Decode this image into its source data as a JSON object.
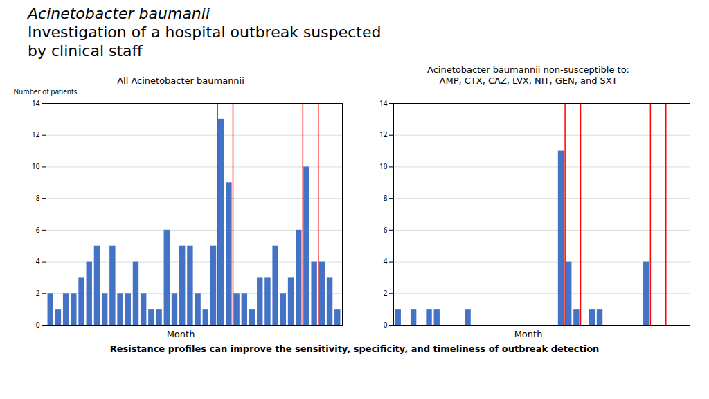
{
  "title": "Acinetobacter baumanii\nInvestigation of a hospital outbreak suspected\nby clinical staff",
  "caption": "Resistance profiles can improve the sensitivity, specificity, and timeliness of outbreak detection",
  "chart_data": [
    {
      "type": "bar",
      "title": "All Acinetobacter baumannii",
      "categories": [
        null,
        null,
        null,
        null,
        null,
        null,
        null,
        null,
        null,
        null,
        null,
        null,
        null,
        null,
        null,
        null,
        null,
        null,
        null,
        null,
        null,
        null,
        null,
        null,
        null,
        null,
        null,
        null,
        null,
        null,
        null,
        null,
        null,
        null,
        null,
        null,
        null,
        null
      ],
      "values": [
        2,
        1,
        2,
        2,
        3,
        4,
        5,
        2,
        5,
        2,
        2,
        4,
        2,
        1,
        1,
        6,
        2,
        5,
        5,
        2,
        1,
        5,
        13,
        9,
        2,
        2,
        1,
        3,
        3,
        5,
        2,
        3,
        6,
        10,
        4,
        4,
        3,
        1
      ],
      "color": "#4472C4",
      "xlabel": "Month",
      "ylabel": "Number of patients",
      "ylim": [
        0,
        14
      ],
      "yticks": [
        0,
        2,
        4,
        6,
        8,
        10,
        12,
        14
      ],
      "grid": true,
      "tick_labels": "y",
      "vlines": [
        21.5,
        23.5,
        32.5,
        34.5
      ],
      "vline_color": "#FF0000"
    },
    {
      "type": "bar",
      "title": "Acinetobacter baumannii non-susceptible to:\nAMP, CTX, CAZ, LVX, NIT, GEN, and SXT",
      "categories": [
        null,
        null,
        null,
        null,
        null,
        null,
        null,
        null,
        null,
        null,
        null,
        null,
        null,
        null,
        null,
        null,
        null,
        null,
        null,
        null,
        null,
        null,
        null,
        null,
        null,
        null,
        null,
        null,
        null,
        null,
        null,
        null,
        null,
        null,
        null,
        null,
        null,
        null
      ],
      "values": [
        1,
        0,
        1,
        0,
        1,
        1,
        0,
        0,
        0,
        1,
        0,
        0,
        0,
        0,
        0,
        0,
        0,
        0,
        0,
        0,
        0,
        11,
        4,
        1,
        0,
        1,
        1,
        0,
        0,
        0,
        0,
        0,
        4,
        0,
        0,
        0,
        0,
        0
      ],
      "color": "#4472C4",
      "xlabel": "Month",
      "ylim": [
        0,
        14
      ],
      "yticks": [
        0,
        2,
        4,
        6,
        8,
        10,
        12,
        14
      ],
      "grid": true,
      "tick_labels": "y",
      "vlines": [
        21.5,
        23.5,
        32.5,
        34.5
      ],
      "vline_color": "#FF0000"
    }
  ]
}
